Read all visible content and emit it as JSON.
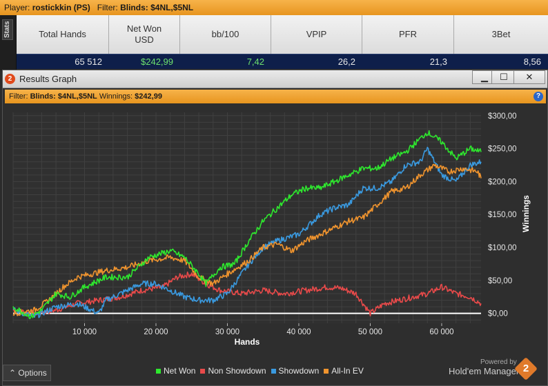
{
  "filterbar": {
    "player_label": "Player:",
    "player_value": "rostickkin (PS)",
    "filter_label": "Filter:",
    "filter_value": "Blinds: $4NL,$5NL"
  },
  "stats_tab": "Stats",
  "stats": {
    "headers": [
      "Total Hands",
      "Net Won\nUSD",
      "bb/100",
      "VPIP",
      "PFR",
      "3Bet"
    ],
    "values": [
      "65 512",
      "$242,99",
      "7,42",
      "26,2",
      "21,3",
      "8,56"
    ]
  },
  "window": {
    "logo": "2",
    "title": "Results Graph",
    "minimize": "▁",
    "maximize": "☐",
    "close": "✕"
  },
  "graph_filter": {
    "filter_label": "Filter:",
    "filter_value": "Blinds: $4NL,$5NL",
    "winnings_label": "Winnings:",
    "winnings_value": "$242,99",
    "help": "?"
  },
  "chart_data": {
    "type": "line",
    "xlabel": "Hands",
    "ylabel": "Winnings",
    "xlim": [
      0,
      65512
    ],
    "ylim": [
      -15,
      305
    ],
    "x_ticks": [
      10000,
      20000,
      30000,
      40000,
      50000,
      60000
    ],
    "x_tick_labels": [
      "10 000",
      "20 000",
      "30 000",
      "40 000",
      "50 000",
      "60 000"
    ],
    "y_ticks": [
      0,
      50,
      100,
      150,
      200,
      250,
      300
    ],
    "y_tick_labels": [
      "$0,00",
      "$50,00",
      "$100,00",
      "$150,00",
      "$200,00",
      "$250,00",
      "$300,00"
    ],
    "grid": true,
    "legend_position": "bottom",
    "series": [
      {
        "name": "Net Won",
        "color": "#2ee82e",
        "x": [
          0,
          2500,
          4000,
          6000,
          8000,
          10000,
          13000,
          16000,
          19000,
          22000,
          24000,
          26000,
          27000,
          29000,
          31000,
          33000,
          35000,
          37000,
          39000,
          41000,
          43000,
          45000,
          47000,
          49000,
          51000,
          53000,
          55000,
          57000,
          58000,
          60000,
          62000,
          64000,
          65512
        ],
        "y": [
          10,
          -5,
          5,
          30,
          25,
          40,
          55,
          55,
          85,
          95,
          85,
          60,
          45,
          70,
          75,
          110,
          140,
          160,
          180,
          190,
          190,
          200,
          210,
          220,
          220,
          235,
          245,
          265,
          275,
          260,
          235,
          250,
          245
        ]
      },
      {
        "name": "Non Showdown",
        "color": "#e84a4a",
        "x": [
          0,
          3000,
          6000,
          9000,
          12000,
          15000,
          18000,
          21000,
          23000,
          25000,
          27000,
          29000,
          32000,
          35000,
          38000,
          41000,
          44000,
          46000,
          48000,
          50000,
          52000,
          54000,
          56000,
          58000,
          60000,
          62000,
          64000,
          65512
        ],
        "y": [
          5,
          0,
          5,
          15,
          20,
          25,
          35,
          40,
          55,
          60,
          45,
          35,
          30,
          35,
          30,
          35,
          40,
          38,
          30,
          0,
          15,
          20,
          25,
          30,
          40,
          30,
          25,
          15
        ]
      },
      {
        "name": "Showdown",
        "color": "#3a9ae0",
        "x": [
          0,
          3000,
          6000,
          9000,
          11000,
          12000,
          13000,
          15000,
          18000,
          20000,
          22000,
          24000,
          26000,
          28000,
          30000,
          33000,
          35000,
          37000,
          40000,
          43000,
          45000,
          47000,
          49000,
          51000,
          53000,
          55000,
          57000,
          58000,
          60000,
          62000,
          64000,
          65512
        ],
        "y": [
          5,
          -5,
          10,
          15,
          5,
          0,
          20,
          30,
          45,
          45,
          35,
          25,
          20,
          20,
          30,
          75,
          100,
          110,
          120,
          150,
          160,
          165,
          190,
          190,
          200,
          225,
          230,
          250,
          210,
          200,
          225,
          230
        ]
      },
      {
        "name": "All-In EV",
        "color": "#f0942e",
        "x": [
          0,
          3000,
          5000,
          7000,
          9000,
          11000,
          13000,
          16000,
          19000,
          22000,
          24000,
          26000,
          28000,
          30000,
          33000,
          35000,
          37000,
          39000,
          41000,
          43000,
          45000,
          47000,
          49000,
          51000,
          53000,
          55000,
          57000,
          59000,
          61000,
          63000,
          65000,
          65512
        ],
        "y": [
          0,
          5,
          20,
          40,
          55,
          60,
          65,
          70,
          80,
          85,
          80,
          55,
          45,
          60,
          80,
          100,
          105,
          95,
          110,
          120,
          130,
          140,
          145,
          165,
          185,
          190,
          210,
          225,
          215,
          220,
          215,
          205
        ]
      }
    ]
  },
  "bottom": {
    "options_label": "Options",
    "options_icon": "⌃",
    "powered_by": "Powered by",
    "brand": "Hold'em Manager",
    "brand_logo": "2"
  }
}
